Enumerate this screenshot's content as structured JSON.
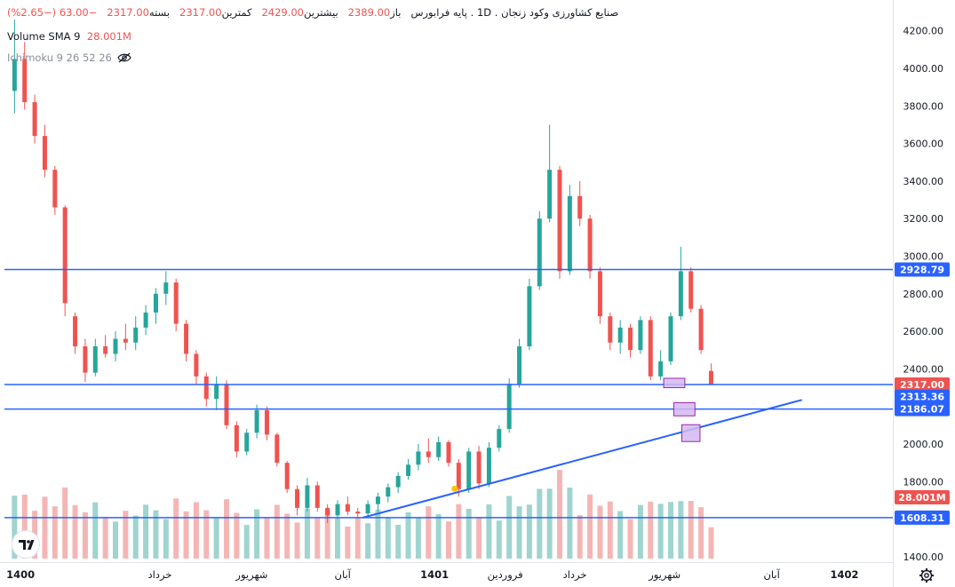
{
  "legend": {
    "symbol": "صنایع کشاورزی وکود زنجان",
    "interval": "1D",
    "market": "پایه فرابورس",
    "open_label": "باز",
    "open": "2389.00",
    "high_label": "بیشترین",
    "high": "2429.00",
    "low_label": "کمترین",
    "low": "2317.00",
    "close_label": "بسته",
    "close": "2317.00",
    "change": "−63.00",
    "change_pct": "(−2.65%)",
    "volume_label": "Volume SMA 9",
    "volume_value": "28.001M",
    "ichimoku_label": "Ichimoku 9 26 52 26"
  },
  "colors": {
    "up": "#26a69a",
    "down": "#ef5350",
    "level_line": "#2962ff",
    "trendline": "#2962ff",
    "box_fill": "#d4b9f0",
    "box_stroke": "#9c27b0",
    "vol_up": "#9fd4cf",
    "vol_down": "#f4b6b5"
  },
  "icons": [
    "eye-off-icon",
    "tradingview-logo",
    "gear-icon"
  ],
  "chart_data": {
    "type": "candlestick",
    "price_axis": {
      "ticks": [
        4200,
        4000,
        3800,
        3600,
        3400,
        3200,
        3000,
        2800,
        2600,
        2400,
        2200,
        2000,
        1800,
        1600,
        1400
      ],
      "tick_labels": [
        "4200.00",
        "4000.00",
        "3800.00",
        "3600.00",
        "3400.00",
        "3200.00",
        "3000.00",
        "2800.00",
        "2600.00",
        "2400.00",
        "2200.00",
        "2000.00",
        "1800.00",
        "1600.00",
        "1400.00"
      ],
      "ylim": [
        1390,
        4260
      ]
    },
    "time_axis": {
      "labels": [
        "1400",
        "خرداد",
        "شهریور",
        "آبان",
        "1401",
        "فروردین",
        "خرداد",
        "شهریور",
        "آبان",
        "1402"
      ],
      "label_x_index": [
        0.6,
        14.4,
        23.5,
        32.5,
        41.6,
        48.6,
        55.5,
        64.4,
        75.0,
        82.2
      ],
      "x_range": [
        -1,
        87
      ]
    },
    "horizontal_levels": [
      {
        "value": 2928.79,
        "label": "2928.79"
      },
      {
        "value": 2317.0,
        "label": "2317.00"
      },
      {
        "value": 2186.07,
        "label": "2186.07"
      },
      {
        "value": 1608.31,
        "label": "1608.31"
      }
    ],
    "extra_price_labels": [
      {
        "value": 2313.36,
        "label": "2313.36"
      },
      {
        "value": 28.001,
        "label": "28.001M",
        "kind": "volume"
      }
    ],
    "trendline": {
      "from": {
        "x": 34.5,
        "y": 1608
      },
      "to": {
        "x": 78.0,
        "y": 2235
      }
    },
    "markers": [
      {
        "x": 43.6,
        "y": 1762
      }
    ],
    "zones": [
      {
        "x1": 64.3,
        "x2": 66.4,
        "y1": 2300,
        "y2": 2350
      },
      {
        "x1": 65.3,
        "x2": 67.4,
        "y1": 2150,
        "y2": 2220
      },
      {
        "x1": 66.1,
        "x2": 67.9,
        "y1": 2013,
        "y2": 2103
      }
    ],
    "candles": [
      {
        "o": 3880,
        "h": 4260,
        "l": 3760,
        "c": 4050
      },
      {
        "o": 4050,
        "h": 4140,
        "l": 3780,
        "c": 3820
      },
      {
        "o": 3820,
        "h": 3860,
        "l": 3600,
        "c": 3640
      },
      {
        "o": 3640,
        "h": 3700,
        "l": 3420,
        "c": 3460
      },
      {
        "o": 3460,
        "h": 3480,
        "l": 3220,
        "c": 3260
      },
      {
        "o": 3260,
        "h": 3270,
        "l": 2680,
        "c": 2750
      },
      {
        "o": 2680,
        "h": 2700,
        "l": 2480,
        "c": 2520
      },
      {
        "o": 2520,
        "h": 2560,
        "l": 2330,
        "c": 2380
      },
      {
        "o": 2380,
        "h": 2560,
        "l": 2360,
        "c": 2520
      },
      {
        "o": 2520,
        "h": 2580,
        "l": 2460,
        "c": 2480
      },
      {
        "o": 2480,
        "h": 2600,
        "l": 2440,
        "c": 2560
      },
      {
        "o": 2560,
        "h": 2640,
        "l": 2500,
        "c": 2540
      },
      {
        "o": 2540,
        "h": 2680,
        "l": 2500,
        "c": 2620
      },
      {
        "o": 2620,
        "h": 2740,
        "l": 2580,
        "c": 2700
      },
      {
        "o": 2700,
        "h": 2830,
        "l": 2640,
        "c": 2800
      },
      {
        "o": 2800,
        "h": 2920,
        "l": 2740,
        "c": 2860
      },
      {
        "o": 2860,
        "h": 2880,
        "l": 2600,
        "c": 2640
      },
      {
        "o": 2640,
        "h": 2660,
        "l": 2440,
        "c": 2480
      },
      {
        "o": 2480,
        "h": 2500,
        "l": 2320,
        "c": 2360
      },
      {
        "o": 2360,
        "h": 2380,
        "l": 2200,
        "c": 2240
      },
      {
        "o": 2240,
        "h": 2360,
        "l": 2180,
        "c": 2320
      },
      {
        "o": 2320,
        "h": 2340,
        "l": 2080,
        "c": 2100
      },
      {
        "o": 2100,
        "h": 2120,
        "l": 1930,
        "c": 1960
      },
      {
        "o": 1960,
        "h": 2080,
        "l": 1940,
        "c": 2060
      },
      {
        "o": 2060,
        "h": 2210,
        "l": 2030,
        "c": 2180
      },
      {
        "o": 2180,
        "h": 2200,
        "l": 2020,
        "c": 2050
      },
      {
        "o": 2050,
        "h": 2060,
        "l": 1880,
        "c": 1900
      },
      {
        "o": 1900,
        "h": 1910,
        "l": 1740,
        "c": 1760
      },
      {
        "o": 1760,
        "h": 1780,
        "l": 1620,
        "c": 1660
      },
      {
        "o": 1660,
        "h": 1820,
        "l": 1640,
        "c": 1780
      },
      {
        "o": 1780,
        "h": 1800,
        "l": 1640,
        "c": 1660
      },
      {
        "o": 1660,
        "h": 1680,
        "l": 1580,
        "c": 1620
      },
      {
        "o": 1620,
        "h": 1700,
        "l": 1600,
        "c": 1680
      },
      {
        "o": 1680,
        "h": 1720,
        "l": 1620,
        "c": 1640
      },
      {
        "o": 1640,
        "h": 1660,
        "l": 1610,
        "c": 1630
      },
      {
        "o": 1630,
        "h": 1700,
        "l": 1615,
        "c": 1680
      },
      {
        "o": 1680,
        "h": 1740,
        "l": 1640,
        "c": 1720
      },
      {
        "o": 1720,
        "h": 1790,
        "l": 1690,
        "c": 1770
      },
      {
        "o": 1770,
        "h": 1850,
        "l": 1740,
        "c": 1830
      },
      {
        "o": 1830,
        "h": 1920,
        "l": 1810,
        "c": 1890
      },
      {
        "o": 1890,
        "h": 2000,
        "l": 1860,
        "c": 1960
      },
      {
        "o": 1960,
        "h": 2030,
        "l": 1900,
        "c": 1930
      },
      {
        "o": 1930,
        "h": 2040,
        "l": 1910,
        "c": 2010
      },
      {
        "o": 2010,
        "h": 2020,
        "l": 1880,
        "c": 1900
      },
      {
        "o": 1900,
        "h": 1920,
        "l": 1720,
        "c": 1760
      },
      {
        "o": 1760,
        "h": 1980,
        "l": 1740,
        "c": 1960
      },
      {
        "o": 1960,
        "h": 1990,
        "l": 1760,
        "c": 1790
      },
      {
        "o": 1790,
        "h": 2010,
        "l": 1770,
        "c": 1980
      },
      {
        "o": 1980,
        "h": 2100,
        "l": 1960,
        "c": 2080
      },
      {
        "o": 2080,
        "h": 2350,
        "l": 2060,
        "c": 2320
      },
      {
        "o": 2320,
        "h": 2560,
        "l": 2300,
        "c": 2520
      },
      {
        "o": 2520,
        "h": 2880,
        "l": 2500,
        "c": 2840
      },
      {
        "o": 2840,
        "h": 3240,
        "l": 2820,
        "c": 3200
      },
      {
        "o": 3200,
        "h": 3700,
        "l": 3180,
        "c": 3460
      },
      {
        "o": 3460,
        "h": 3480,
        "l": 2880,
        "c": 2920
      },
      {
        "o": 2920,
        "h": 3380,
        "l": 2900,
        "c": 3320
      },
      {
        "o": 3320,
        "h": 3400,
        "l": 3160,
        "c": 3200
      },
      {
        "o": 3200,
        "h": 3220,
        "l": 2880,
        "c": 2920
      },
      {
        "o": 2920,
        "h": 2940,
        "l": 2640,
        "c": 2680
      },
      {
        "o": 2680,
        "h": 2700,
        "l": 2500,
        "c": 2540
      },
      {
        "o": 2540,
        "h": 2660,
        "l": 2480,
        "c": 2620
      },
      {
        "o": 2620,
        "h": 2640,
        "l": 2460,
        "c": 2500
      },
      {
        "o": 2500,
        "h": 2680,
        "l": 2480,
        "c": 2660
      },
      {
        "o": 2660,
        "h": 2680,
        "l": 2340,
        "c": 2360
      },
      {
        "o": 2360,
        "h": 2500,
        "l": 2340,
        "c": 2440
      },
      {
        "o": 2440,
        "h": 2700,
        "l": 2420,
        "c": 2680
      },
      {
        "o": 2680,
        "h": 3050,
        "l": 2660,
        "c": 2920
      },
      {
        "o": 2920,
        "h": 2940,
        "l": 2700,
        "c": 2720
      },
      {
        "o": 2720,
        "h": 2740,
        "l": 2480,
        "c": 2500
      },
      {
        "o": 2389,
        "h": 2429,
        "l": 2317,
        "c": 2317
      }
    ],
    "volume_sma": {
      "value": 28.001,
      "unit": "M"
    }
  }
}
